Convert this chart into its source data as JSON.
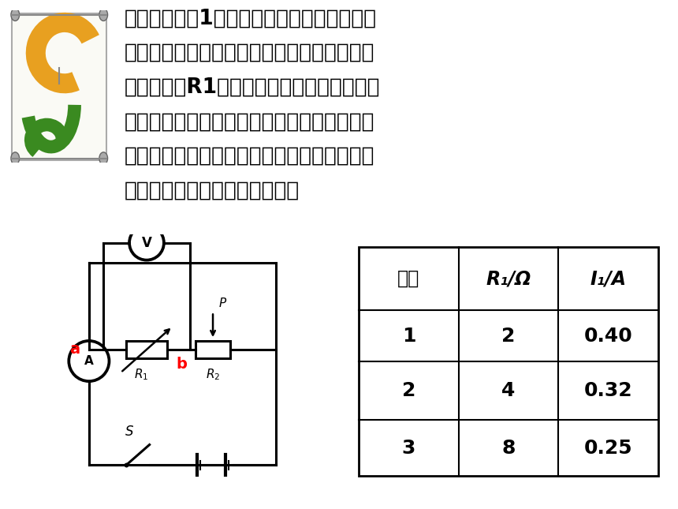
{
  "bg_color": "#FFFFFF",
  "text_color": "#000000",
  "main_text_lines": [
    "某同学按如图1所示电路研究通过导体的电流",
    "与导体电阻的关系，电源电压不变，他不断的",
    "改变电阻箱R1的阻值，测得相应的电流如下",
    "表．试根据表中的数据分析，判断电流与电阻",
    "之间是否存在反比关系，若与欧姆定律内容不",
    "符，试分析造成此问题的原因．"
  ],
  "text_fontsize": 19,
  "label_a_color": "#FF0000",
  "label_b_color": "#FF0000",
  "table_header_col1": "次数",
  "table_header_col2": "R₁/Ω",
  "table_header_col3": "I₁/A",
  "table_rows": [
    [
      "1",
      "2",
      "0.40"
    ],
    [
      "2",
      "4",
      "0.32"
    ],
    [
      "3",
      "8",
      "0.25"
    ]
  ]
}
